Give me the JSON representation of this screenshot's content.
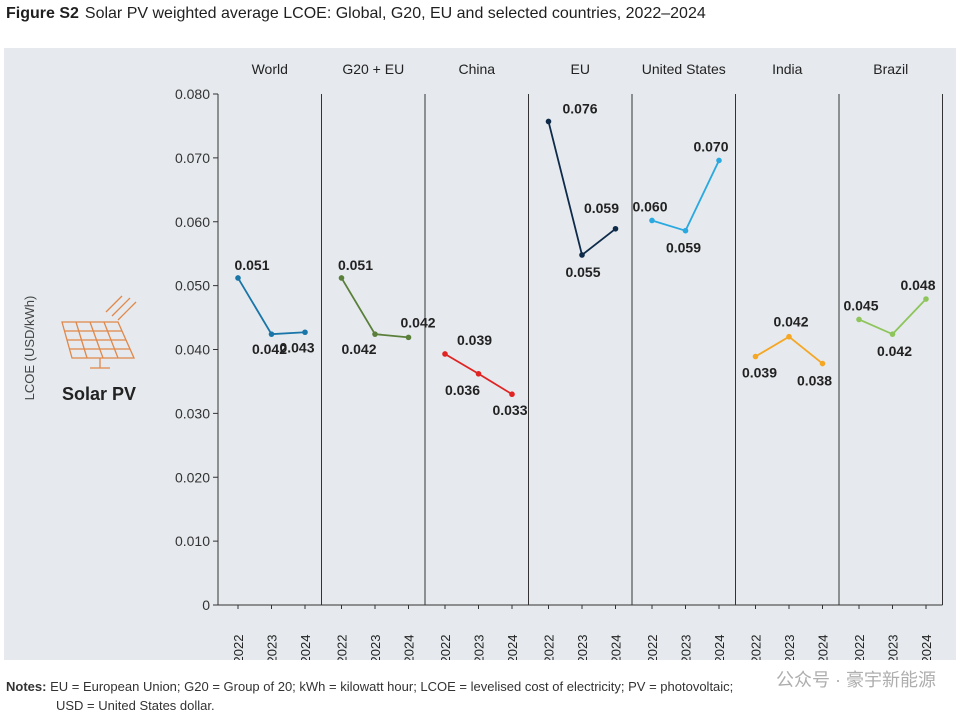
{
  "figure": {
    "label": "Figure S2",
    "title": "Solar PV weighted average LCOE: Global, G20, EU and selected countries, 2022–2024"
  },
  "notes": {
    "label": "Notes:",
    "line1": "EU = European Union; G20 = Group of 20; kWh = kilowatt hour; LCOE = levelised cost of electricity; PV = photovoltaic;",
    "line2": "USD = United States dollar."
  },
  "side": {
    "icon_name": "solar-panel-icon",
    "label": "Solar PV"
  },
  "watermark": "公众号 · 豪宇新能源",
  "chart_data": {
    "type": "line",
    "title": "Solar PV weighted average LCOE: Global, G20, EU and selected countries, 2022–2024",
    "ylabel": "LCOE (USD/kWh)",
    "ylim": [
      0,
      0.08
    ],
    "yticks": [
      "0",
      "0.010",
      "0.020",
      "0.030",
      "0.040",
      "0.050",
      "0.060",
      "0.070",
      "0.080"
    ],
    "ytick_values": [
      0,
      0.01,
      0.02,
      0.03,
      0.04,
      0.05,
      0.06,
      0.07,
      0.08
    ],
    "categories": [
      "2022",
      "2023",
      "2024"
    ],
    "grid": false,
    "series": [
      {
        "name": "World",
        "color": "#1a75a8",
        "values": [
          0.0512,
          0.0424,
          0.0427
        ],
        "labels": [
          "0.051",
          "0.042",
          "0.043"
        ]
      },
      {
        "name": "G20 + EU",
        "color": "#5a7f3a",
        "values": [
          0.0512,
          0.0424,
          0.0419
        ],
        "labels": [
          "0.051",
          "0.042",
          "0.042"
        ]
      },
      {
        "name": "China",
        "color": "#e02424",
        "values": [
          0.0393,
          0.0362,
          0.033
        ],
        "labels": [
          "0.039",
          "0.036",
          "0.033"
        ]
      },
      {
        "name": "EU",
        "color": "#0f2b4a",
        "values": [
          0.0757,
          0.0548,
          0.0589
        ],
        "labels": [
          "0.076",
          "0.055",
          "0.059"
        ]
      },
      {
        "name": "United States",
        "color": "#29a9df",
        "values": [
          0.0602,
          0.0586,
          0.0696
        ],
        "labels": [
          "0.060",
          "0.059",
          "0.070"
        ]
      },
      {
        "name": "India",
        "color": "#f5a623",
        "values": [
          0.0389,
          0.042,
          0.0378
        ],
        "labels": [
          "0.039",
          "0.042",
          "0.038"
        ]
      },
      {
        "name": "Brazil",
        "color": "#8dc55b",
        "values": [
          0.0447,
          0.0424,
          0.0479
        ],
        "labels": [
          "0.045",
          "0.042",
          "0.048"
        ]
      }
    ]
  }
}
